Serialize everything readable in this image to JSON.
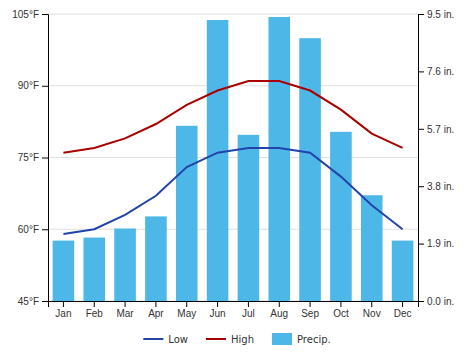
{
  "chart_data": {
    "type": "bar",
    "categories": [
      "Jan",
      "Feb",
      "Mar",
      "Apr",
      "May",
      "Jun",
      "Jul",
      "Aug",
      "Sep",
      "Oct",
      "Nov",
      "Dec"
    ],
    "series": [
      {
        "name": "Low",
        "type": "line",
        "color": "#2244aa",
        "values": [
          59,
          60,
          63,
          67,
          73,
          76,
          77,
          77,
          76,
          71,
          65,
          60
        ]
      },
      {
        "name": "High",
        "type": "line",
        "color": "#aa0000",
        "values": [
          76,
          77,
          79,
          82,
          86,
          89,
          91,
          91,
          89,
          85,
          80,
          77
        ]
      },
      {
        "name": "Precip.",
        "type": "bar",
        "axis": "y2",
        "color": "#4db8e8",
        "values": [
          2.0,
          2.1,
          2.4,
          2.8,
          5.8,
          9.3,
          5.5,
          9.4,
          8.7,
          5.6,
          3.5,
          2.0
        ]
      }
    ],
    "ylim": [
      45,
      105
    ],
    "yticks": [
      {
        "value": 45,
        "label": "45°F"
      },
      {
        "value": 60,
        "label": "60°F"
      },
      {
        "value": 75,
        "label": "75°F"
      },
      {
        "value": 90,
        "label": "90°F"
      },
      {
        "value": 105,
        "label": "105°F"
      }
    ],
    "y2lim": [
      0,
      9.5
    ],
    "y2ticks": [
      {
        "value": 0.0,
        "label": "0.0 in."
      },
      {
        "value": 1.9,
        "label": "1.9 in."
      },
      {
        "value": 3.8,
        "label": "3.8 in."
      },
      {
        "value": 5.7,
        "label": "5.7 in."
      },
      {
        "value": 7.6,
        "label": "7.6 in."
      },
      {
        "value": 9.5,
        "label": "9.5 in."
      }
    ],
    "grid": true,
    "legend": "bottom"
  }
}
